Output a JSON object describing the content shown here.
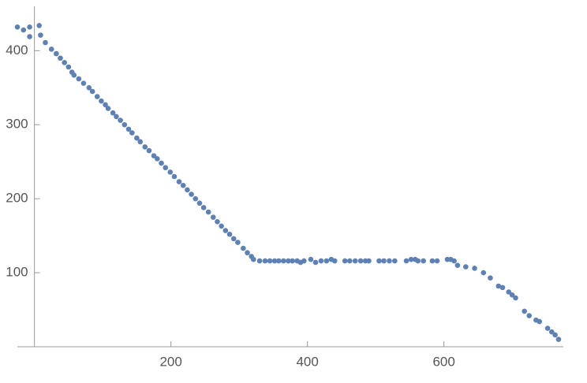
{
  "chart_data": {
    "type": "scatter",
    "color": "#5e81b5",
    "xlim": [
      -25,
      775
    ],
    "ylim": [
      0,
      460
    ],
    "xticks": [
      200,
      400,
      600
    ],
    "yticks": [
      100,
      200,
      300,
      400
    ],
    "x": [
      -25,
      -16,
      -7,
      -7,
      7,
      9,
      16,
      25,
      32,
      38,
      44,
      50,
      55,
      58,
      65,
      72,
      80,
      85,
      92,
      98,
      104,
      108,
      115,
      120,
      126,
      132,
      138,
      143,
      150,
      155,
      162,
      168,
      175,
      180,
      186,
      192,
      199,
      205,
      212,
      218,
      224,
      230,
      236,
      242,
      248,
      255,
      262,
      268,
      274,
      280,
      286,
      292,
      298,
      306,
      312,
      318,
      321,
      330,
      338,
      345,
      352,
      358,
      365,
      372,
      378,
      385,
      390,
      395,
      405,
      412,
      420,
      428,
      435,
      440,
      455,
      462,
      470,
      478,
      485,
      490,
      505,
      512,
      520,
      528,
      545,
      552,
      558,
      562,
      570,
      583,
      590,
      605,
      610,
      615,
      620,
      632,
      645,
      658,
      668,
      680,
      686,
      695,
      700,
      705,
      718,
      725,
      735,
      740,
      752,
      758,
      763,
      768
    ],
    "values": [
      432,
      428,
      432,
      419,
      434,
      421,
      411,
      402,
      396,
      390,
      384,
      378,
      371,
      367,
      362,
      356,
      350,
      345,
      338,
      332,
      327,
      322,
      316,
      311,
      306,
      300,
      294,
      289,
      282,
      277,
      270,
      265,
      258,
      254,
      248,
      242,
      236,
      230,
      223,
      218,
      212,
      206,
      200,
      194,
      188,
      182,
      175,
      169,
      163,
      157,
      152,
      146,
      141,
      133,
      127,
      122,
      118,
      116,
      116,
      116,
      116,
      116,
      116,
      116,
      116,
      116,
      114,
      116,
      118,
      114,
      116,
      116,
      118,
      116,
      116,
      116,
      116,
      116,
      116,
      116,
      116,
      116,
      116,
      116,
      116,
      118,
      118,
      116,
      116,
      116,
      116,
      118,
      118,
      116,
      110,
      108,
      106,
      100,
      93,
      82,
      80,
      74,
      70,
      66,
      48,
      42,
      36,
      34,
      25,
      20,
      16,
      10
    ]
  }
}
